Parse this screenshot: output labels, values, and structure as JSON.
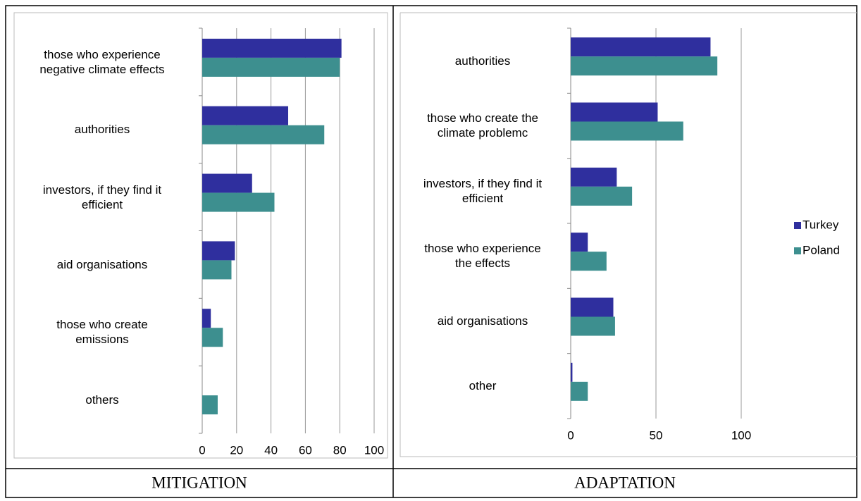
{
  "chart_data": [
    {
      "type": "bar",
      "orientation": "horizontal",
      "categories": [
        "those who experience\nnegative climate effects",
        "authorities",
        "investors, if they find it\nefficient",
        "aid organisations",
        "those who create\nemissions",
        "others"
      ],
      "series": [
        {
          "color": "#2f2f9e",
          "values": [
            81,
            50,
            29,
            19,
            5,
            0
          ]
        },
        {
          "color": "#3d8f8f",
          "values": [
            80,
            71,
            42,
            17,
            12,
            9
          ]
        }
      ],
      "xlim": [
        0,
        100
      ],
      "xticks": [
        0,
        20,
        40,
        60,
        80,
        100
      ],
      "grid": true
    },
    {
      "type": "bar",
      "orientation": "horizontal",
      "categories": [
        "authorities",
        "those who create the\nclimate problemc",
        "investors, if they find it\nefficient",
        "those who experience\nthe effects",
        "aid organisations",
        "other"
      ],
      "series": [
        {
          "name": "Turkey",
          "color": "#2f2f9e",
          "values": [
            82,
            51,
            27,
            10,
            25,
            1
          ]
        },
        {
          "name": "Poland",
          "color": "#3d8f8f",
          "values": [
            86,
            66,
            36,
            21,
            26,
            10
          ]
        }
      ],
      "xlim": [
        0,
        100
      ],
      "xticks": [
        0,
        50,
        100
      ],
      "grid": true,
      "legend": "right"
    }
  ],
  "table": {
    "captions": [
      "MITIGATION",
      "ADAPTATION"
    ]
  }
}
